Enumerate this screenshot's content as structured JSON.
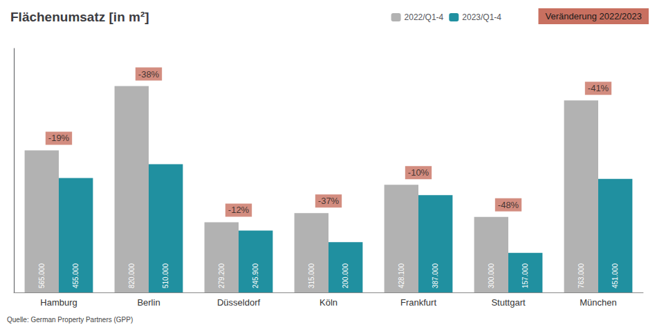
{
  "chart_data": {
    "type": "bar",
    "title": "Flächenumsatz [in m²]",
    "categories": [
      "Hamburg",
      "Berlin",
      "Düsseldorf",
      "Köln",
      "Frankfurt",
      "Stuttgart",
      "München"
    ],
    "series": [
      {
        "name": "2022/Q1-4",
        "color": "#b2b2b2",
        "values": [
          565000,
          820000,
          279200,
          315000,
          428100,
          300000,
          763000
        ],
        "value_labels": [
          "565.000",
          "820.000",
          "279.200",
          "315.000",
          "428.100",
          "300.000",
          "763.000"
        ]
      },
      {
        "name": "2023/Q1-4",
        "color": "#2090a0",
        "values": [
          455000,
          510000,
          245900,
          200000,
          387000,
          157000,
          451000
        ],
        "value_labels": [
          "455.000",
          "510.000",
          "245.900",
          "200.000",
          "387.000",
          "157.000",
          "451.000"
        ]
      }
    ],
    "changes": {
      "name": "Veränderung 2022/2023",
      "color": "#c87060",
      "values": [
        -19,
        -38,
        -12,
        -37,
        -10,
        -48,
        -41
      ],
      "value_labels": [
        "-19%",
        "-38%",
        "-12%",
        "-37%",
        "-10%",
        "-48%",
        "-41%"
      ]
    },
    "source": "Quelle: German Property Partners (GPP)",
    "ylim": [
      0,
      970000
    ],
    "yticks": [],
    "grid": false,
    "legend": "top",
    "tick_labels": "x",
    "data_labels": true
  }
}
